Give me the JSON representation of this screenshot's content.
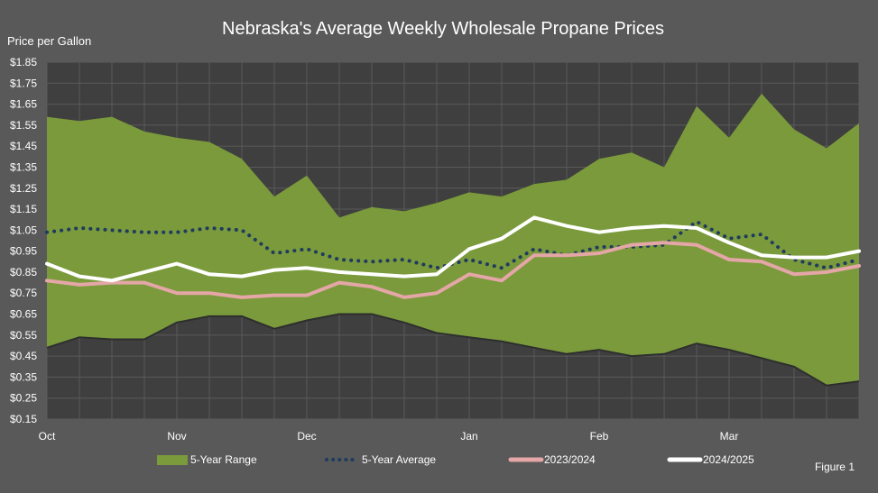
{
  "chart_data": {
    "type": "area+line",
    "title": "Nebraska's Average Weekly Wholesale Propane Prices",
    "ylabel": "Price per Gallon",
    "figure_label": "Figure 1",
    "ylim": [
      0.15,
      1.85
    ],
    "y_ticks": [
      "$0.15",
      "$0.25",
      "$0.35",
      "$0.45",
      "$0.55",
      "$0.65",
      "$0.75",
      "$0.85",
      "$0.95",
      "$1.05",
      "$1.15",
      "$1.25",
      "$1.35",
      "$1.45",
      "$1.55",
      "$1.65",
      "$1.75",
      "$1.85"
    ],
    "y_tick_values": [
      0.15,
      0.25,
      0.35,
      0.45,
      0.55,
      0.65,
      0.75,
      0.85,
      0.95,
      1.05,
      1.15,
      1.25,
      1.35,
      1.45,
      1.55,
      1.65,
      1.75,
      1.85
    ],
    "x_week_count": 26,
    "month_labels": [
      {
        "label": "Oct",
        "week": 0
      },
      {
        "label": "Nov",
        "week": 4
      },
      {
        "label": "Dec",
        "week": 8
      },
      {
        "label": "Jan",
        "week": 13
      },
      {
        "label": "Feb",
        "week": 17
      },
      {
        "label": "Mar",
        "week": 21
      }
    ],
    "grid": true,
    "legend_position": "bottom",
    "range_upper": [
      1.59,
      1.57,
      1.59,
      1.52,
      1.49,
      1.47,
      1.39,
      1.21,
      1.31,
      1.11,
      1.16,
      1.14,
      1.18,
      1.23,
      1.21,
      1.27,
      1.29,
      1.39,
      1.42,
      1.35,
      1.64,
      1.49,
      1.7,
      1.53,
      1.44,
      1.56
    ],
    "range_lower": [
      0.49,
      0.54,
      0.53,
      0.53,
      0.61,
      0.64,
      0.64,
      0.58,
      0.62,
      0.65,
      0.65,
      0.61,
      0.56,
      0.54,
      0.52,
      0.49,
      0.46,
      0.48,
      0.45,
      0.46,
      0.51,
      0.48,
      0.44,
      0.4,
      0.31,
      0.33
    ],
    "series": [
      {
        "name": "5-Year Range",
        "color": "#7a9a3c",
        "style": "area"
      },
      {
        "name": "5-Year Average",
        "color": "#1f3b5e",
        "style": "dotted",
        "values": [
          1.04,
          1.06,
          1.05,
          1.04,
          1.04,
          1.06,
          1.05,
          0.94,
          0.96,
          0.91,
          0.9,
          0.91,
          0.87,
          0.91,
          0.87,
          0.96,
          0.93,
          0.97,
          0.97,
          0.98,
          1.09,
          1.01,
          1.03,
          0.91,
          0.87,
          0.91
        ]
      },
      {
        "name": "2023/2024",
        "color": "#e4a6a6",
        "style": "solid",
        "values": [
          0.81,
          0.79,
          0.8,
          0.8,
          0.75,
          0.75,
          0.73,
          0.74,
          0.74,
          0.8,
          0.78,
          0.73,
          0.75,
          0.84,
          0.81,
          0.93,
          0.93,
          0.94,
          0.98,
          0.99,
          0.98,
          0.91,
          0.9,
          0.84,
          0.85,
          0.88
        ]
      },
      {
        "name": "2024/2025",
        "color": "#ffffff",
        "style": "solid",
        "values": [
          0.89,
          0.83,
          0.81,
          0.85,
          0.89,
          0.84,
          0.83,
          0.86,
          0.87,
          0.85,
          0.84,
          0.83,
          0.84,
          0.96,
          1.01,
          1.11,
          1.07,
          1.04,
          1.06,
          1.07,
          1.06,
          0.99,
          0.93,
          0.92,
          0.92,
          0.95
        ]
      }
    ]
  }
}
